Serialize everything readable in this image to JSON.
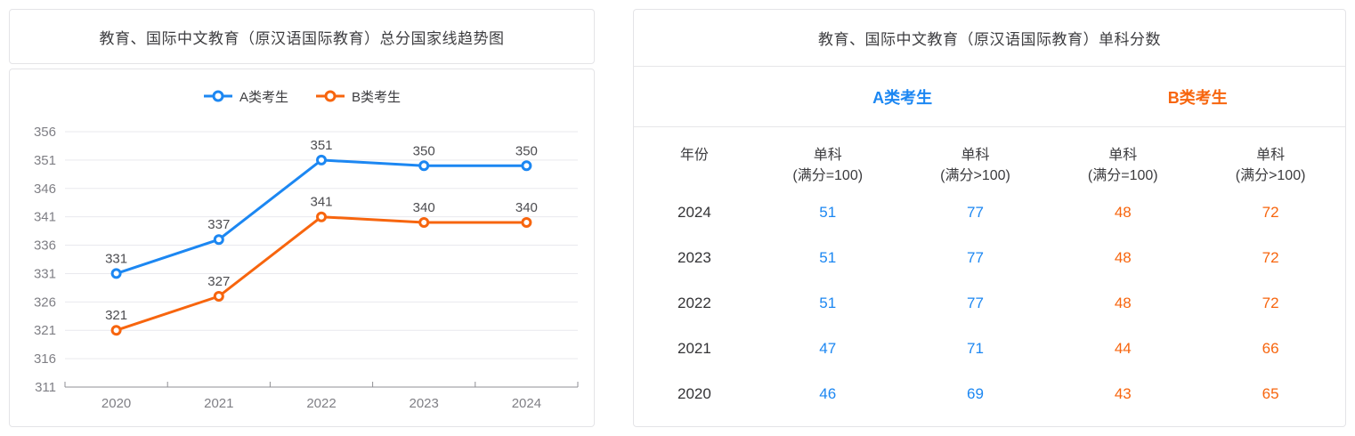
{
  "colors": {
    "accent_blue": "#1c87f2",
    "accent_orange": "#f7650e",
    "grid": "#e9e9ee",
    "axis": "#8f8f94",
    "card_border": "#e4e4e7"
  },
  "left_panel": {
    "title": "教育、国际中文教育（原汉语国际教育）总分国家线趋势图"
  },
  "chart_data": {
    "type": "line",
    "title": "教育、国际中文教育（原汉语国际教育）总分国家线趋势图",
    "categories": [
      "2020",
      "2021",
      "2022",
      "2023",
      "2024"
    ],
    "series": [
      {
        "name": "A类考生",
        "color": "#1c87f2",
        "values": [
          331,
          337,
          351,
          350,
          350
        ]
      },
      {
        "name": "B类考生",
        "color": "#f7650e",
        "values": [
          321,
          327,
          341,
          340,
          340
        ]
      }
    ],
    "y_ticks": [
      356,
      351,
      346,
      341,
      336,
      331,
      326,
      321,
      316,
      311
    ],
    "ylim": [
      311,
      356
    ],
    "xlabel": "",
    "ylabel": "",
    "grid": true,
    "legend_position": "top",
    "data_labels": true
  },
  "right_panel": {
    "title": "教育、国际中文教育（原汉语国际教育）单科分数",
    "group_headers": [
      {
        "label": "A类考生",
        "color": "#1c87f2"
      },
      {
        "label": "B类考生",
        "color": "#f7650e"
      }
    ],
    "columns": [
      {
        "line1": "年份",
        "line2": ""
      },
      {
        "line1": "单科",
        "line2": "(满分=100)"
      },
      {
        "line1": "单科",
        "line2": "(满分>100)"
      },
      {
        "line1": "单科",
        "line2": "(满分=100)"
      },
      {
        "line1": "单科",
        "line2": "(满分>100)"
      }
    ],
    "rows": [
      {
        "year": "2024",
        "values": [
          51,
          77,
          48,
          72
        ]
      },
      {
        "year": "2023",
        "values": [
          51,
          77,
          48,
          72
        ]
      },
      {
        "year": "2022",
        "values": [
          51,
          77,
          48,
          72
        ]
      },
      {
        "year": "2021",
        "values": [
          47,
          71,
          44,
          66
        ]
      },
      {
        "year": "2020",
        "values": [
          46,
          69,
          43,
          65
        ]
      }
    ]
  }
}
